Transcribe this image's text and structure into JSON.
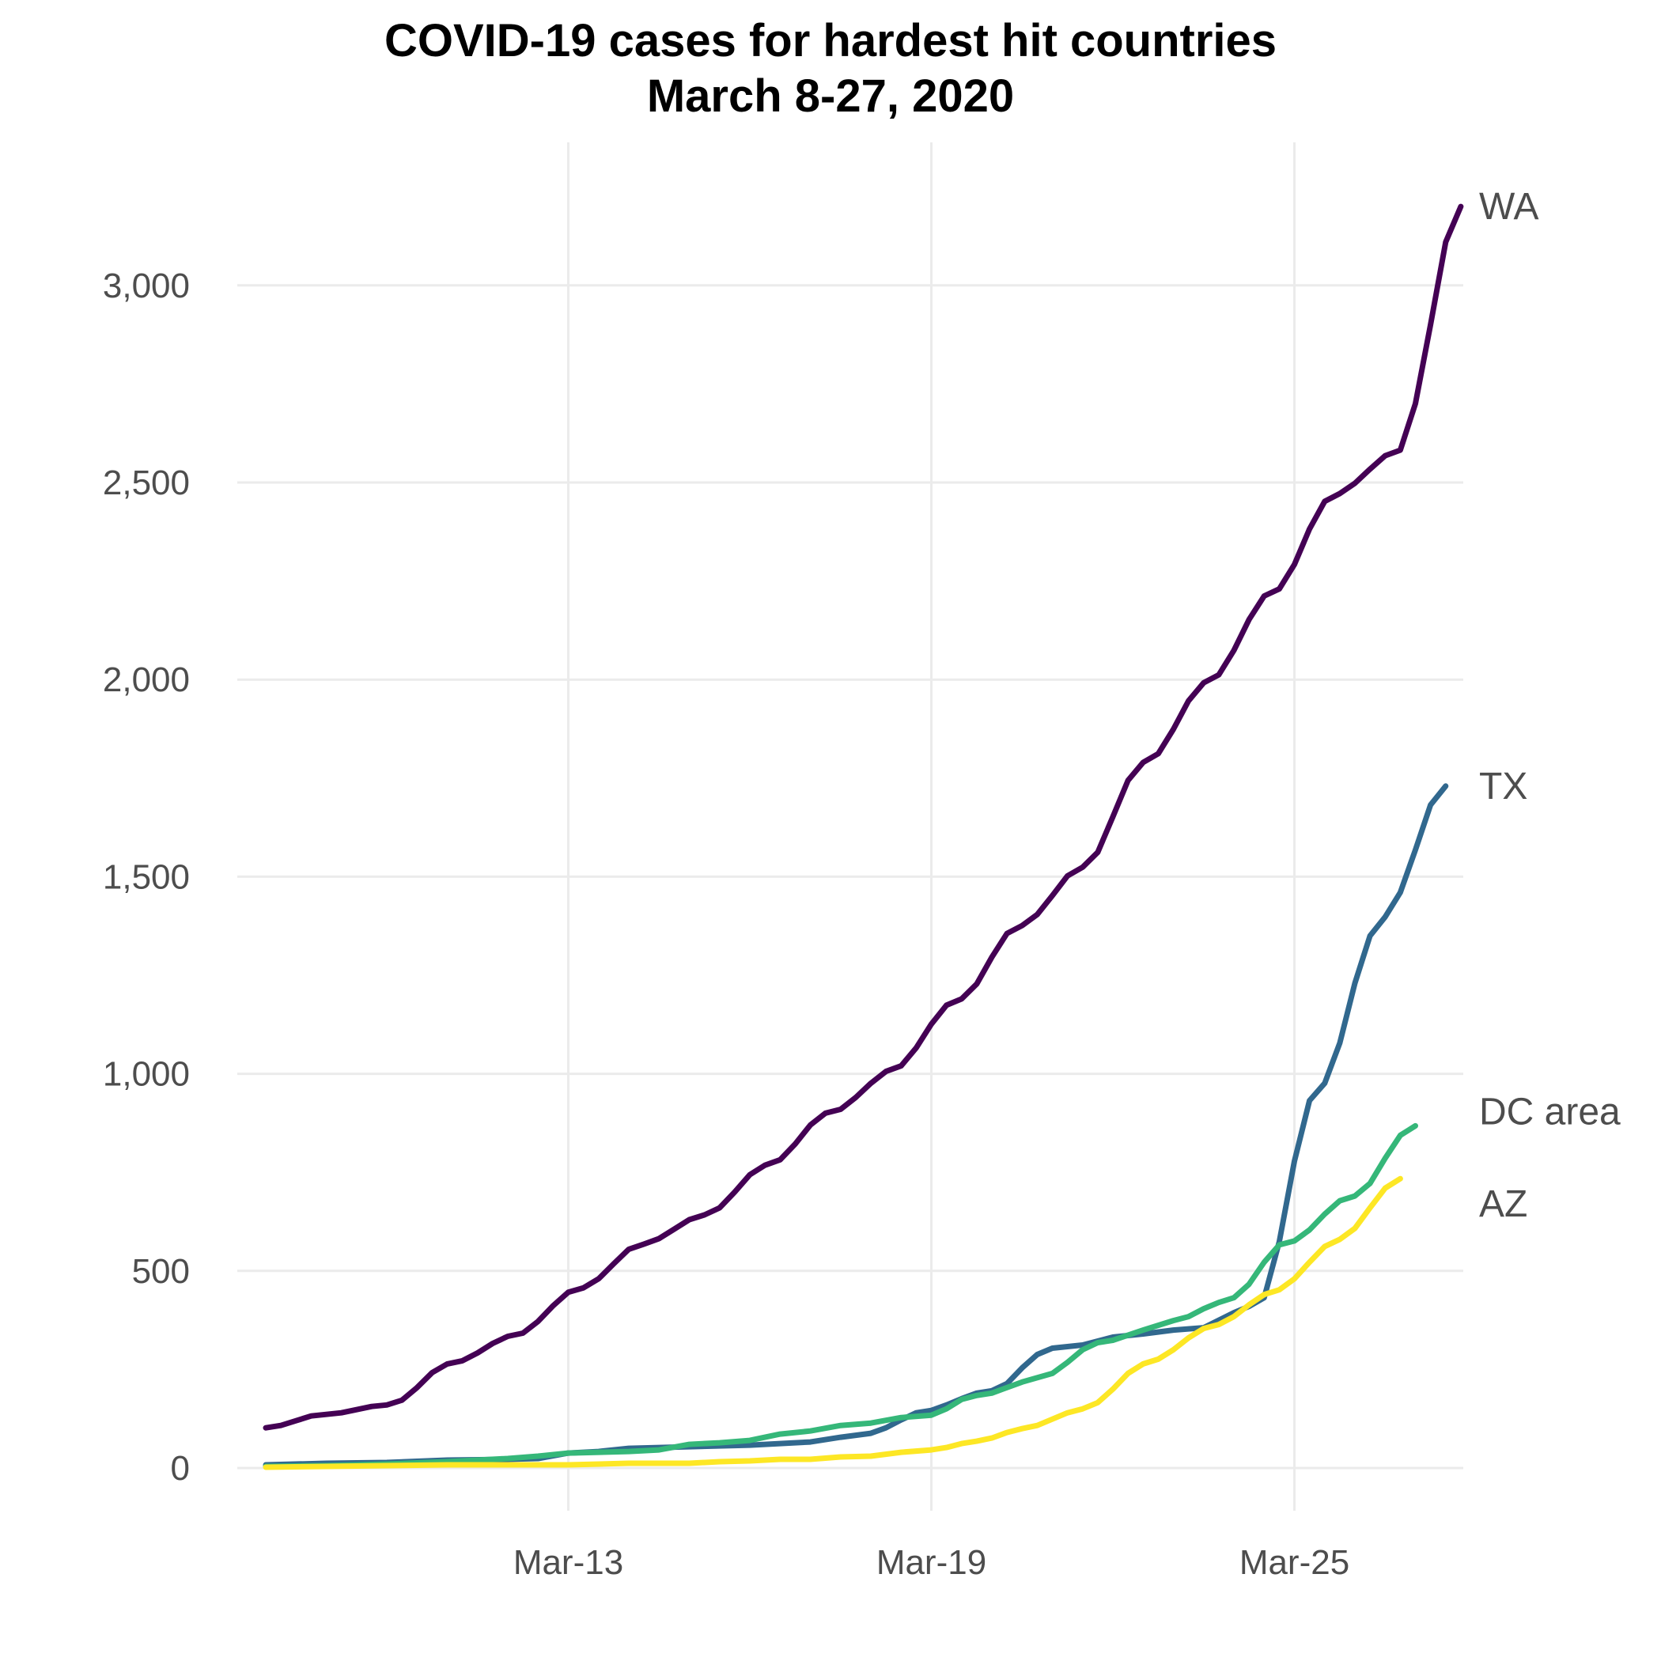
{
  "chart_data": {
    "type": "line",
    "title": "COVID-19 cases for hardest hit countries",
    "subtitle": "March 8-27, 2020",
    "xlabel": "",
    "ylabel": "",
    "x_start": "2020-03-08",
    "x_end": "2020-03-27",
    "x_ticks": [
      {
        "date": "2020-03-13",
        "label": "Mar-13"
      },
      {
        "date": "2020-03-19",
        "label": "Mar-19"
      },
      {
        "date": "2020-03-25",
        "label": "Mar-25"
      }
    ],
    "ylim": [
      0,
      3200
    ],
    "y_ticks": [
      {
        "value": 0,
        "label": "0"
      },
      {
        "value": 500,
        "label": "500"
      },
      {
        "value": 1000,
        "label": "1,000"
      },
      {
        "value": 1500,
        "label": "1,500"
      },
      {
        "value": 2000,
        "label": "2,000"
      },
      {
        "value": 2500,
        "label": "2,500"
      },
      {
        "value": 3000,
        "label": "3,000"
      }
    ],
    "grid": true,
    "legend": "direct labels at line ends",
    "series": [
      {
        "name": "WA",
        "color": "#440154",
        "points": [
          [
            "2020-03-08 00:00",
            102
          ],
          [
            "2020-03-08 06:00",
            108
          ],
          [
            "2020-03-08 12:00",
            120
          ],
          [
            "2020-03-08 18:00",
            132
          ],
          [
            "2020-03-09 00:00",
            136
          ],
          [
            "2020-03-09 06:00",
            140
          ],
          [
            "2020-03-09 12:00",
            148
          ],
          [
            "2020-03-09 18:00",
            156
          ],
          [
            "2020-03-10 00:00",
            160
          ],
          [
            "2020-03-10 06:00",
            172
          ],
          [
            "2020-03-10 12:00",
            204
          ],
          [
            "2020-03-10 18:00",
            242
          ],
          [
            "2020-03-11 00:00",
            264
          ],
          [
            "2020-03-11 06:00",
            272
          ],
          [
            "2020-03-11 12:00",
            292
          ],
          [
            "2020-03-11 18:00",
            316
          ],
          [
            "2020-03-12 00:00",
            334
          ],
          [
            "2020-03-12 06:00",
            342
          ],
          [
            "2020-03-12 12:00",
            372
          ],
          [
            "2020-03-12 18:00",
            412
          ],
          [
            "2020-03-13 00:00",
            446
          ],
          [
            "2020-03-13 06:00",
            457
          ],
          [
            "2020-03-13 12:00",
            480
          ],
          [
            "2020-03-13 18:00",
            518
          ],
          [
            "2020-03-14 00:00",
            555
          ],
          [
            "2020-03-14 06:00",
            568
          ],
          [
            "2020-03-14 12:00",
            582
          ],
          [
            "2020-03-14 18:00",
            606
          ],
          [
            "2020-03-15 00:00",
            630
          ],
          [
            "2020-03-15 06:00",
            642
          ],
          [
            "2020-03-15 12:00",
            660
          ],
          [
            "2020-03-15 18:00",
            700
          ],
          [
            "2020-03-16 00:00",
            744
          ],
          [
            "2020-03-16 06:00",
            768
          ],
          [
            "2020-03-16 12:00",
            782
          ],
          [
            "2020-03-16 18:00",
            822
          ],
          [
            "2020-03-17 00:00",
            870
          ],
          [
            "2020-03-17 06:00",
            900
          ],
          [
            "2020-03-17 12:00",
            910
          ],
          [
            "2020-03-17 18:00",
            940
          ],
          [
            "2020-03-18 00:00",
            976
          ],
          [
            "2020-03-18 06:00",
            1006
          ],
          [
            "2020-03-18 12:00",
            1020
          ],
          [
            "2020-03-18 18:00",
            1066
          ],
          [
            "2020-03-19 00:00",
            1126
          ],
          [
            "2020-03-19 06:00",
            1174
          ],
          [
            "2020-03-19 12:00",
            1190
          ],
          [
            "2020-03-19 18:00",
            1228
          ],
          [
            "2020-03-20 00:00",
            1296
          ],
          [
            "2020-03-20 06:00",
            1356
          ],
          [
            "2020-03-20 12:00",
            1376
          ],
          [
            "2020-03-20 18:00",
            1404
          ],
          [
            "2020-03-21 00:00",
            1452
          ],
          [
            "2020-03-21 06:00",
            1502
          ],
          [
            "2020-03-21 12:00",
            1524
          ],
          [
            "2020-03-21 18:00",
            1562
          ],
          [
            "2020-03-22 00:00",
            1652
          ],
          [
            "2020-03-22 06:00",
            1744
          ],
          [
            "2020-03-22 12:00",
            1790
          ],
          [
            "2020-03-22 18:00",
            1812
          ],
          [
            "2020-03-23 00:00",
            1874
          ],
          [
            "2020-03-23 06:00",
            1946
          ],
          [
            "2020-03-23 12:00",
            1992
          ],
          [
            "2020-03-23 18:00",
            2012
          ],
          [
            "2020-03-24 00:00",
            2074
          ],
          [
            "2020-03-24 06:00",
            2152
          ],
          [
            "2020-03-24 12:00",
            2212
          ],
          [
            "2020-03-24 18:00",
            2230
          ],
          [
            "2020-03-25 00:00",
            2292
          ],
          [
            "2020-03-25 06:00",
            2382
          ],
          [
            "2020-03-25 12:00",
            2452
          ],
          [
            "2020-03-25 18:00",
            2472
          ],
          [
            "2020-03-26 00:00",
            2498
          ],
          [
            "2020-03-26 06:00",
            2534
          ],
          [
            "2020-03-26 12:00",
            2568
          ],
          [
            "2020-03-26 18:00",
            2582
          ],
          [
            "2020-03-27 00:00",
            2700
          ],
          [
            "2020-03-27 06:00",
            2900
          ],
          [
            "2020-03-27 12:00",
            3110
          ],
          [
            "2020-03-27 18:00",
            3200
          ]
        ]
      },
      {
        "name": "TX",
        "color": "#31688e",
        "points": [
          [
            "2020-03-08 00:00",
            8
          ],
          [
            "2020-03-09 00:00",
            12
          ],
          [
            "2020-03-10 00:00",
            14
          ],
          [
            "2020-03-11 00:00",
            20
          ],
          [
            "2020-03-12 00:00",
            22
          ],
          [
            "2020-03-12 12:00",
            24
          ],
          [
            "2020-03-13 00:00",
            38
          ],
          [
            "2020-03-13 12:00",
            42
          ],
          [
            "2020-03-14 00:00",
            50
          ],
          [
            "2020-03-15 00:00",
            54
          ],
          [
            "2020-03-16 00:00",
            58
          ],
          [
            "2020-03-17 00:00",
            66
          ],
          [
            "2020-03-17 12:00",
            78
          ],
          [
            "2020-03-18 00:00",
            88
          ],
          [
            "2020-03-18 06:00",
            102
          ],
          [
            "2020-03-18 12:00",
            122
          ],
          [
            "2020-03-18 18:00",
            140
          ],
          [
            "2020-03-19 00:00",
            146
          ],
          [
            "2020-03-19 06:00",
            160
          ],
          [
            "2020-03-19 12:00",
            176
          ],
          [
            "2020-03-19 18:00",
            190
          ],
          [
            "2020-03-20 00:00",
            196
          ],
          [
            "2020-03-20 06:00",
            214
          ],
          [
            "2020-03-20 12:00",
            254
          ],
          [
            "2020-03-20 18:00",
            288
          ],
          [
            "2020-03-21 00:00",
            304
          ],
          [
            "2020-03-21 12:00",
            312
          ],
          [
            "2020-03-22 00:00",
            332
          ],
          [
            "2020-03-22 12:00",
            340
          ],
          [
            "2020-03-23 00:00",
            350
          ],
          [
            "2020-03-23 12:00",
            356
          ],
          [
            "2020-03-24 00:00",
            394
          ],
          [
            "2020-03-24 06:00",
            410
          ],
          [
            "2020-03-24 12:00",
            432
          ],
          [
            "2020-03-24 18:00",
            574
          ],
          [
            "2020-03-25 00:00",
            778
          ],
          [
            "2020-03-25 06:00",
            932
          ],
          [
            "2020-03-25 12:00",
            976
          ],
          [
            "2020-03-25 18:00",
            1078
          ],
          [
            "2020-03-26 00:00",
            1230
          ],
          [
            "2020-03-26 06:00",
            1350
          ],
          [
            "2020-03-26 12:00",
            1398
          ],
          [
            "2020-03-26 18:00",
            1460
          ],
          [
            "2020-03-27 00:00",
            1568
          ],
          [
            "2020-03-27 06:00",
            1682
          ],
          [
            "2020-03-27 12:00",
            1730
          ]
        ]
      },
      {
        "name": "DC area",
        "color": "#35b779",
        "points": [
          [
            "2020-03-08 00:00",
            4
          ],
          [
            "2020-03-09 00:00",
            6
          ],
          [
            "2020-03-10 00:00",
            10
          ],
          [
            "2020-03-11 00:00",
            16
          ],
          [
            "2020-03-12 00:00",
            24
          ],
          [
            "2020-03-12 12:00",
            30
          ],
          [
            "2020-03-13 00:00",
            38
          ],
          [
            "2020-03-14 00:00",
            42
          ],
          [
            "2020-03-14 12:00",
            46
          ],
          [
            "2020-03-15 00:00",
            60
          ],
          [
            "2020-03-15 12:00",
            64
          ],
          [
            "2020-03-16 00:00",
            70
          ],
          [
            "2020-03-16 12:00",
            86
          ],
          [
            "2020-03-17 00:00",
            94
          ],
          [
            "2020-03-17 12:00",
            108
          ],
          [
            "2020-03-18 00:00",
            114
          ],
          [
            "2020-03-18 12:00",
            128
          ],
          [
            "2020-03-19 00:00",
            134
          ],
          [
            "2020-03-19 06:00",
            150
          ],
          [
            "2020-03-19 12:00",
            174
          ],
          [
            "2020-03-19 18:00",
            184
          ],
          [
            "2020-03-20 00:00",
            190
          ],
          [
            "2020-03-20 12:00",
            218
          ],
          [
            "2020-03-21 00:00",
            240
          ],
          [
            "2020-03-21 06:00",
            268
          ],
          [
            "2020-03-21 12:00",
            300
          ],
          [
            "2020-03-21 18:00",
            318
          ],
          [
            "2020-03-22 00:00",
            324
          ],
          [
            "2020-03-22 12:00",
            350
          ],
          [
            "2020-03-23 00:00",
            374
          ],
          [
            "2020-03-23 06:00",
            384
          ],
          [
            "2020-03-23 12:00",
            404
          ],
          [
            "2020-03-23 18:00",
            420
          ],
          [
            "2020-03-24 00:00",
            432
          ],
          [
            "2020-03-24 06:00",
            466
          ],
          [
            "2020-03-24 12:00",
            522
          ],
          [
            "2020-03-24 18:00",
            566
          ],
          [
            "2020-03-25 00:00",
            576
          ],
          [
            "2020-03-25 06:00",
            604
          ],
          [
            "2020-03-25 12:00",
            644
          ],
          [
            "2020-03-25 18:00",
            678
          ],
          [
            "2020-03-26 00:00",
            690
          ],
          [
            "2020-03-26 06:00",
            722
          ],
          [
            "2020-03-26 12:00",
            786
          ],
          [
            "2020-03-26 18:00",
            844
          ],
          [
            "2020-03-27 00:00",
            868
          ]
        ]
      },
      {
        "name": "AZ",
        "color": "#fde725",
        "points": [
          [
            "2020-03-08 00:00",
            2
          ],
          [
            "2020-03-09 00:00",
            4
          ],
          [
            "2020-03-10 00:00",
            6
          ],
          [
            "2020-03-11 00:00",
            8
          ],
          [
            "2020-03-12 00:00",
            8
          ],
          [
            "2020-03-13 00:00",
            8
          ],
          [
            "2020-03-14 00:00",
            12
          ],
          [
            "2020-03-15 00:00",
            12
          ],
          [
            "2020-03-15 12:00",
            16
          ],
          [
            "2020-03-16 00:00",
            18
          ],
          [
            "2020-03-16 12:00",
            22
          ],
          [
            "2020-03-17 00:00",
            22
          ],
          [
            "2020-03-17 12:00",
            28
          ],
          [
            "2020-03-18 00:00",
            30
          ],
          [
            "2020-03-18 12:00",
            40
          ],
          [
            "2020-03-19 00:00",
            46
          ],
          [
            "2020-03-19 06:00",
            52
          ],
          [
            "2020-03-19 12:00",
            62
          ],
          [
            "2020-03-19 18:00",
            68
          ],
          [
            "2020-03-20 00:00",
            76
          ],
          [
            "2020-03-20 06:00",
            90
          ],
          [
            "2020-03-20 12:00",
            100
          ],
          [
            "2020-03-20 18:00",
            108
          ],
          [
            "2020-03-21 00:00",
            124
          ],
          [
            "2020-03-21 06:00",
            140
          ],
          [
            "2020-03-21 12:00",
            150
          ],
          [
            "2020-03-21 18:00",
            166
          ],
          [
            "2020-03-22 00:00",
            200
          ],
          [
            "2020-03-22 06:00",
            240
          ],
          [
            "2020-03-22 12:00",
            264
          ],
          [
            "2020-03-22 18:00",
            276
          ],
          [
            "2020-03-23 00:00",
            300
          ],
          [
            "2020-03-23 06:00",
            330
          ],
          [
            "2020-03-23 12:00",
            354
          ],
          [
            "2020-03-23 18:00",
            364
          ],
          [
            "2020-03-24 00:00",
            384
          ],
          [
            "2020-03-24 06:00",
            414
          ],
          [
            "2020-03-24 12:00",
            440
          ],
          [
            "2020-03-24 18:00",
            452
          ],
          [
            "2020-03-25 00:00",
            480
          ],
          [
            "2020-03-25 06:00",
            522
          ],
          [
            "2020-03-25 12:00",
            562
          ],
          [
            "2020-03-25 18:00",
            580
          ],
          [
            "2020-03-26 00:00",
            608
          ],
          [
            "2020-03-26 06:00",
            660
          ],
          [
            "2020-03-26 12:00",
            710
          ],
          [
            "2020-03-26 18:00",
            734
          ]
        ]
      }
    ]
  }
}
